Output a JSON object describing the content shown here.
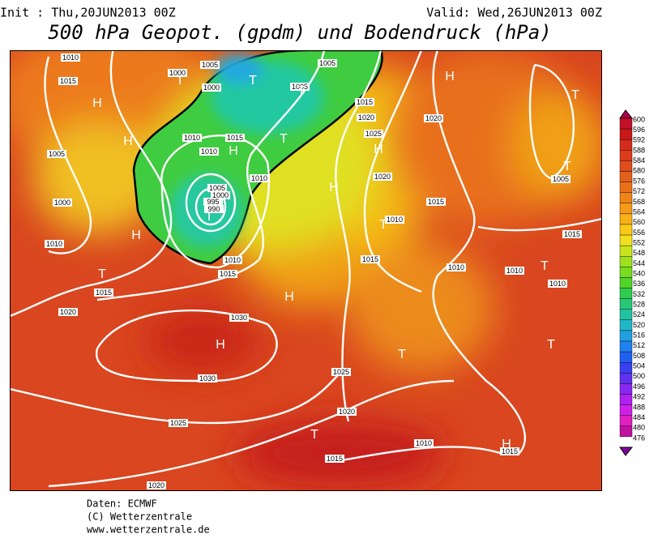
{
  "header": {
    "init": "Init : Thu,20JUN2013 00Z",
    "valid": "Valid: Wed,26JUN2013 00Z",
    "title": "500 hPa Geopot. (gpdm) und Bodendruck (hPa)"
  },
  "colorbar": {
    "levels": [
      "600",
      "596",
      "592",
      "588",
      "584",
      "580",
      "576",
      "572",
      "568",
      "564",
      "560",
      "556",
      "552",
      "548",
      "544",
      "540",
      "536",
      "532",
      "528",
      "524",
      "520",
      "516",
      "512",
      "508",
      "504",
      "500",
      "496",
      "492",
      "488",
      "484",
      "480",
      "476"
    ],
    "colors": [
      "#b0004a",
      "#c0102a",
      "#c81818",
      "#d42c1c",
      "#dc3c1c",
      "#e04c1c",
      "#e45e1c",
      "#ea7018",
      "#f08418",
      "#f49a18",
      "#f8b018",
      "#fcc818",
      "#f0e020",
      "#c8e41c",
      "#a0e01c",
      "#78dc20",
      "#50d428",
      "#30cc50",
      "#28c878",
      "#20c4a0",
      "#20b8c8",
      "#20a0e0",
      "#2080f0",
      "#2060f0",
      "#3840f0",
      "#6030f0",
      "#8828f0",
      "#b020f0",
      "#d020e8",
      "#e020c0",
      "#c010a0",
      "#8000a0"
    ]
  },
  "isobar_labels": [
    "1010",
    "1015",
    "1005",
    "1000",
    "1000",
    "1005",
    "1005",
    "1015",
    "1020",
    "1025",
    "1020",
    "1010",
    "1015",
    "1010",
    "1010",
    "1005",
    "1000",
    "1005",
    "1000",
    "995",
    "990",
    "1020",
    "1010",
    "1015",
    "1010",
    "1015",
    "1020",
    "1015",
    "1010",
    "1005",
    "1015",
    "1010",
    "1010",
    "1010",
    "1015",
    "1030",
    "1030",
    "1025",
    "1020",
    "1025",
    "1010",
    "1015",
    "1015",
    "1020"
  ],
  "pressure_centers": [
    "H",
    "H",
    "H",
    "H",
    "H",
    "H",
    "H",
    "H",
    "H",
    "T",
    "T",
    "T",
    "T",
    "T",
    "T",
    "T",
    "T",
    "T",
    "T",
    "T",
    "T",
    "T",
    "H"
  ],
  "footer": [
    "Daten: ECMWF",
    "(C) Wetterzentrale",
    "www.wetterzentrale.de"
  ]
}
